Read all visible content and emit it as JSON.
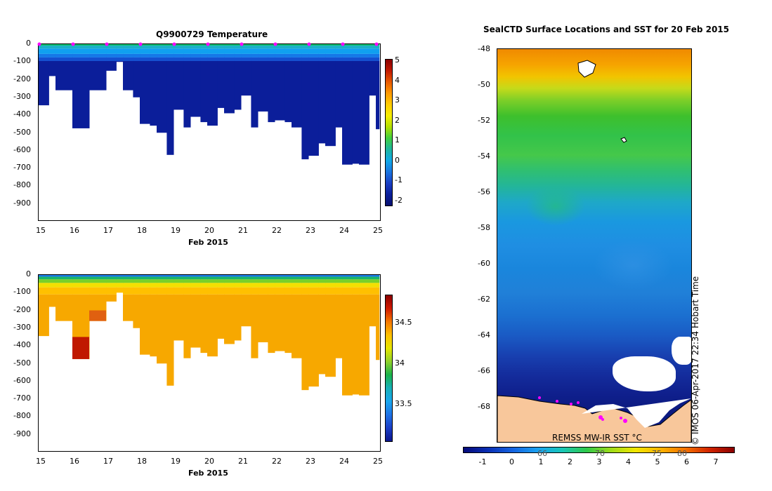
{
  "left_top": {
    "title": "Q9900729  Temperature",
    "xlabel": "Feb 2015",
    "xticks": [
      "15",
      "16",
      "17",
      "18",
      "19",
      "20",
      "21",
      "22",
      "23",
      "24",
      "25"
    ],
    "yticks": [
      "0",
      "-100",
      "-200",
      "-300",
      "-400",
      "-500",
      "-600",
      "-700",
      "-800",
      "-900"
    ],
    "cbar_ticks": [
      "5",
      "4",
      "3",
      "2",
      "1",
      "0",
      "-1",
      "-2"
    ]
  },
  "left_bottom": {
    "xlabel": "Feb 2015",
    "xticks": [
      "15",
      "16",
      "17",
      "18",
      "19",
      "20",
      "21",
      "22",
      "23",
      "24",
      "25"
    ],
    "yticks": [
      "0",
      "-100",
      "-200",
      "-300",
      "-400",
      "-500",
      "-600",
      "-700",
      "-800",
      "-900"
    ],
    "cbar_ticks": [
      "34.5",
      "34",
      "33.5"
    ]
  },
  "map": {
    "title": "SealCTD Surface Locations and SST for 20 Feb 2015",
    "yticks": [
      "-48",
      "-50",
      "-52",
      "-54",
      "-56",
      "-58",
      "-60",
      "-62",
      "-64",
      "-66",
      "-68"
    ],
    "credit": "© IMOS 06-Apr-2017 22:34 Hobart Time",
    "product": "REMSS MW-IR SST °C",
    "cbar_ticks": [
      "-1",
      "0",
      "1",
      "2",
      "3",
      "4",
      "5",
      "6",
      "7"
    ],
    "cbar_overlay": [
      "66",
      "70",
      "75",
      "80"
    ]
  },
  "chart_data": [
    {
      "type": "heatmap",
      "title": "Q9900729  Temperature",
      "xlabel": "Feb 2015",
      "ylabel": "",
      "xlim": [
        15,
        25
      ],
      "ylim": [
        -1000,
        0
      ],
      "colorbar": {
        "min": -2.2,
        "max": 5
      },
      "profiles": [
        {
          "t": 15.0,
          "depth": 345
        },
        {
          "t": 15.3,
          "depth": 180
        },
        {
          "t": 15.5,
          "depth": 260
        },
        {
          "t": 16.0,
          "depth": 475
        },
        {
          "t": 16.5,
          "depth": 260
        },
        {
          "t": 17.0,
          "depth": 150
        },
        {
          "t": 17.3,
          "depth": 100
        },
        {
          "t": 17.5,
          "depth": 260
        },
        {
          "t": 17.8,
          "depth": 300
        },
        {
          "t": 18.0,
          "depth": 450
        },
        {
          "t": 18.3,
          "depth": 460
        },
        {
          "t": 18.5,
          "depth": 500
        },
        {
          "t": 18.8,
          "depth": 625
        },
        {
          "t": 19.0,
          "depth": 370
        },
        {
          "t": 19.3,
          "depth": 470
        },
        {
          "t": 19.5,
          "depth": 410
        },
        {
          "t": 19.8,
          "depth": 440
        },
        {
          "t": 20.0,
          "depth": 460
        },
        {
          "t": 20.3,
          "depth": 360
        },
        {
          "t": 20.5,
          "depth": 390
        },
        {
          "t": 20.8,
          "depth": 370
        },
        {
          "t": 21.0,
          "depth": 290
        },
        {
          "t": 21.3,
          "depth": 470
        },
        {
          "t": 21.5,
          "depth": 380
        },
        {
          "t": 21.8,
          "depth": 440
        },
        {
          "t": 22.0,
          "depth": 430
        },
        {
          "t": 22.3,
          "depth": 440
        },
        {
          "t": 22.5,
          "depth": 470
        },
        {
          "t": 22.8,
          "depth": 650
        },
        {
          "t": 23.0,
          "depth": 630
        },
        {
          "t": 23.3,
          "depth": 560
        },
        {
          "t": 23.5,
          "depth": 575
        },
        {
          "t": 23.8,
          "depth": 470
        },
        {
          "t": 24.0,
          "depth": 680
        },
        {
          "t": 24.3,
          "depth": 675
        },
        {
          "t": 24.5,
          "depth": 680
        },
        {
          "t": 24.8,
          "depth": 290
        },
        {
          "t": 25.0,
          "depth": 480
        }
      ]
    },
    {
      "type": "heatmap",
      "title": "",
      "xlabel": "Feb 2015",
      "ylabel": "",
      "xlim": [
        15,
        25
      ],
      "ylim": [
        -1000,
        0
      ],
      "colorbar": {
        "min": 33.2,
        "max": 34.8
      }
    },
    {
      "type": "heatmap",
      "title": "SealCTD Surface Locations and SST for 20 Feb 2015",
      "ylim": [
        -69.8,
        -48
      ],
      "colorbar": {
        "min": -1.5,
        "max": 7.5,
        "label": "REMSS MW-IR SST °C"
      }
    }
  ]
}
